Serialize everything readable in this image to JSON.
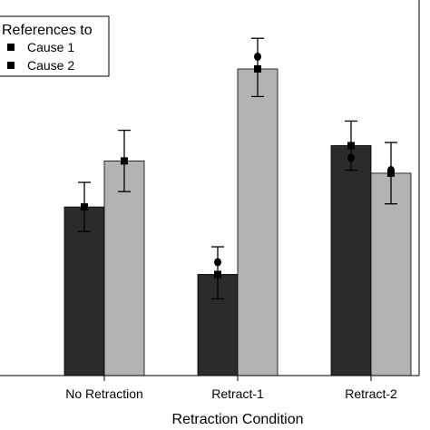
{
  "chart_data": {
    "type": "bar",
    "title": "",
    "xlabel": "Retraction Condition",
    "ylabel": "",
    "categories": [
      "No Retraction",
      "Retract-1",
      "Retract-2"
    ],
    "ylim": [
      0,
      100
    ],
    "grid": false,
    "legend": {
      "title": "References to",
      "placement": "top-left",
      "entries": [
        "Cause 1",
        "Cause 2"
      ]
    },
    "series": [
      {
        "name": "Cause 1",
        "color": "#2b2b2b",
        "values": [
          55,
          33,
          75
        ],
        "error_low": [
          47,
          25,
          67
        ],
        "error_high": [
          63,
          42,
          83
        ],
        "extra_markers": [
          [],
          [
            37
          ],
          [
            71
          ]
        ]
      },
      {
        "name": "Cause 2",
        "color": "#b3b3b3",
        "values": [
          70,
          100,
          66
        ],
        "error_low": [
          60,
          91,
          56
        ],
        "error_high": [
          80,
          110,
          76
        ],
        "extra_markers": [
          [],
          [
            104
          ],
          [
            67
          ]
        ]
      }
    ]
  }
}
